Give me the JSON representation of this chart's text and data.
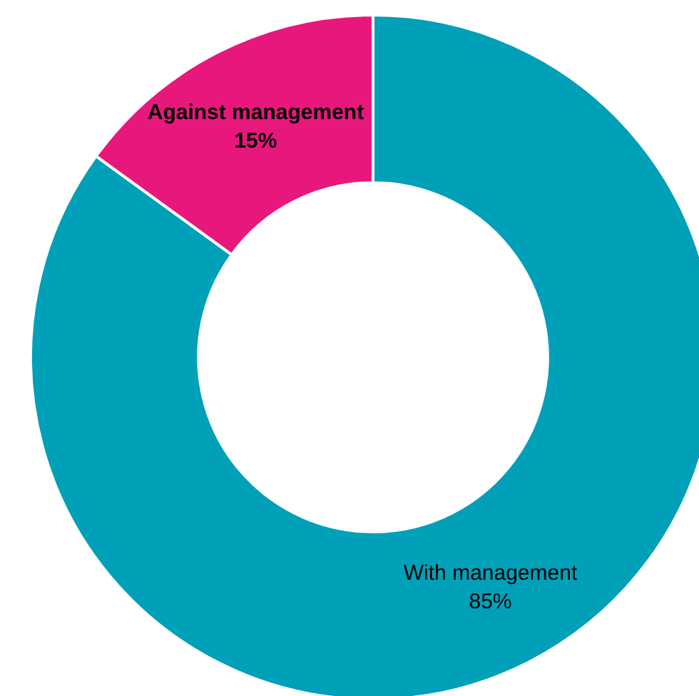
{
  "chart_data": {
    "type": "donut",
    "categories": [
      "With management",
      "Against management"
    ],
    "values": [
      85,
      15
    ],
    "value_labels": [
      "85%",
      "15%"
    ],
    "colors": [
      "#00a0b8",
      "#e8177c"
    ],
    "legend": false
  }
}
